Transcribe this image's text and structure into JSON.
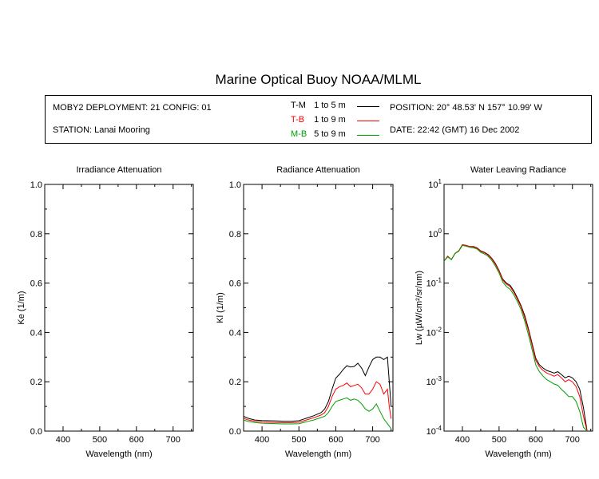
{
  "title": "Marine Optical Buoy NOAA/MLML",
  "info": {
    "deployment": "MOBY2 DEPLOYMENT: 21 CONFIG: 01",
    "station": "STATION: Lanai Mooring",
    "position": "POSITION: 20° 48.53' N   157° 10.99' W",
    "date": "DATE: 22:42 (GMT) 16 Dec 2002",
    "legend": [
      {
        "code": "T-M",
        "range": "1 to 5  m",
        "color": "#000000"
      },
      {
        "code": "T-B",
        "range": "1 to 9  m",
        "color": "#ff0000"
      },
      {
        "code": "M-B",
        "range": "5 to 9  m",
        "color": "#00a000"
      }
    ]
  },
  "chart_data": [
    {
      "type": "line",
      "title": "Irradiance Attenuation",
      "xlabel": "Wavelength (nm)",
      "ylabel": "Ke  (1/m)",
      "xlim": [
        350,
        755
      ],
      "ylim": [
        0,
        1.0
      ],
      "xticks": [
        "400",
        "500",
        "600",
        "700"
      ],
      "yticks": [
        "0.0",
        "0.2",
        "0.4",
        "0.6",
        "0.8",
        "1.0"
      ],
      "series": []
    },
    {
      "type": "line",
      "title": "Radiance Attenuation",
      "xlabel": "Wavelength (nm)",
      "ylabel": "Kl  (1/m)",
      "xlim": [
        350,
        755
      ],
      "ylim": [
        0,
        1.0
      ],
      "xticks": [
        "400",
        "500",
        "600",
        "700"
      ],
      "yticks": [
        "0.0",
        "0.2",
        "0.4",
        "0.6",
        "0.8",
        "1.0"
      ],
      "series": [
        {
          "color": "#000000",
          "x": [
            350,
            360,
            380,
            400,
            420,
            440,
            460,
            480,
            500,
            520,
            540,
            560,
            570,
            580,
            590,
            600,
            610,
            620,
            630,
            640,
            650,
            660,
            670,
            680,
            690,
            700,
            710,
            720,
            730,
            740,
            745,
            750
          ],
          "y": [
            0.06,
            0.053,
            0.045,
            0.043,
            0.042,
            0.041,
            0.04,
            0.04,
            0.042,
            0.052,
            0.062,
            0.075,
            0.09,
            0.12,
            0.17,
            0.215,
            0.23,
            0.25,
            0.265,
            0.26,
            0.262,
            0.275,
            0.255,
            0.225,
            0.26,
            0.29,
            0.3,
            0.3,
            0.29,
            0.3,
            0.2,
            0.1
          ]
        },
        {
          "color": "#ff0000",
          "x": [
            350,
            360,
            380,
            400,
            420,
            440,
            460,
            480,
            500,
            520,
            540,
            560,
            570,
            580,
            590,
            600,
            610,
            620,
            630,
            640,
            650,
            660,
            670,
            680,
            690,
            700,
            710,
            720,
            730,
            740,
            745,
            750
          ],
          "y": [
            0.052,
            0.046,
            0.04,
            0.037,
            0.036,
            0.035,
            0.034,
            0.034,
            0.036,
            0.045,
            0.054,
            0.065,
            0.075,
            0.1,
            0.14,
            0.17,
            0.18,
            0.185,
            0.195,
            0.18,
            0.185,
            0.19,
            0.175,
            0.15,
            0.15,
            0.17,
            0.2,
            0.19,
            0.15,
            0.17,
            0.1,
            0.05
          ]
        },
        {
          "color": "#00a000",
          "x": [
            350,
            360,
            380,
            400,
            420,
            440,
            460,
            480,
            500,
            520,
            540,
            560,
            570,
            580,
            590,
            600,
            610,
            620,
            630,
            640,
            650,
            660,
            670,
            680,
            690,
            700,
            710,
            720,
            730,
            740,
            745,
            750
          ],
          "y": [
            0.045,
            0.04,
            0.035,
            0.032,
            0.031,
            0.03,
            0.029,
            0.029,
            0.03,
            0.038,
            0.045,
            0.055,
            0.06,
            0.075,
            0.1,
            0.12,
            0.125,
            0.13,
            0.135,
            0.125,
            0.13,
            0.125,
            0.11,
            0.09,
            0.08,
            0.09,
            0.11,
            0.08,
            0.05,
            0.03,
            0.02,
            0.01
          ]
        }
      ]
    },
    {
      "type": "line",
      "title": "Water Leaving Radiance",
      "xlabel": "Wavelength (nm)",
      "ylabel": "Lw  (µW/cm²/sr/nm)",
      "yscale": "log",
      "xlim": [
        350,
        755
      ],
      "ylim": [
        0.0001,
        10
      ],
      "xticks": [
        "400",
        "500",
        "600",
        "700"
      ],
      "yticks": [
        "10^-4",
        "10^-3",
        "10^-2",
        "10^-1",
        "10^0",
        "10^1"
      ],
      "series": [
        {
          "color": "#000000",
          "x": [
            350,
            360,
            370,
            380,
            390,
            400,
            410,
            420,
            430,
            440,
            450,
            460,
            470,
            480,
            490,
            500,
            510,
            520,
            530,
            540,
            550,
            560,
            570,
            580,
            590,
            600,
            610,
            620,
            630,
            640,
            650,
            660,
            670,
            680,
            690,
            700,
            710,
            720,
            730,
            740
          ],
          "y": [
            0.28,
            0.35,
            0.3,
            0.4,
            0.45,
            0.6,
            0.58,
            0.55,
            0.55,
            0.52,
            0.45,
            0.42,
            0.38,
            0.32,
            0.25,
            0.18,
            0.12,
            0.1,
            0.09,
            0.07,
            0.05,
            0.035,
            0.022,
            0.012,
            0.006,
            0.003,
            0.0022,
            0.0019,
            0.0017,
            0.0016,
            0.0015,
            0.0016,
            0.0014,
            0.0012,
            0.0013,
            0.0012,
            0.001,
            0.0007,
            0.0003,
            0.0001
          ]
        },
        {
          "color": "#ff0000",
          "x": [
            350,
            360,
            370,
            380,
            390,
            400,
            410,
            420,
            430,
            440,
            450,
            460,
            470,
            480,
            490,
            500,
            510,
            520,
            530,
            540,
            550,
            560,
            570,
            580,
            590,
            600,
            610,
            620,
            630,
            640,
            650,
            660,
            670,
            680,
            690,
            700,
            710,
            720,
            730,
            740
          ],
          "y": [
            0.28,
            0.35,
            0.3,
            0.4,
            0.45,
            0.6,
            0.58,
            0.55,
            0.54,
            0.51,
            0.44,
            0.41,
            0.37,
            0.31,
            0.24,
            0.175,
            0.115,
            0.095,
            0.085,
            0.065,
            0.047,
            0.033,
            0.02,
            0.011,
            0.0055,
            0.0027,
            0.002,
            0.0017,
            0.0015,
            0.0014,
            0.0013,
            0.0014,
            0.0012,
            0.001,
            0.0011,
            0.001,
            0.0008,
            0.0005,
            0.0002,
            0.0001
          ]
        },
        {
          "color": "#00a000",
          "x": [
            350,
            360,
            370,
            380,
            390,
            400,
            410,
            420,
            430,
            440,
            450,
            460,
            470,
            480,
            490,
            500,
            510,
            520,
            530,
            540,
            550,
            560,
            570,
            580,
            590,
            600,
            610,
            620,
            630,
            640,
            650,
            660,
            670,
            680,
            690,
            700,
            710,
            720,
            730,
            740
          ],
          "y": [
            0.28,
            0.34,
            0.3,
            0.4,
            0.44,
            0.58,
            0.56,
            0.53,
            0.52,
            0.49,
            0.42,
            0.39,
            0.35,
            0.29,
            0.22,
            0.16,
            0.105,
            0.085,
            0.075,
            0.058,
            0.042,
            0.029,
            0.017,
            0.009,
            0.0045,
            0.0022,
            0.0016,
            0.0013,
            0.0011,
            0.001,
            0.0009,
            0.00085,
            0.0007,
            0.0006,
            0.0005,
            0.0005,
            0.0004,
            0.00025,
            0.00012,
            0.0001
          ]
        }
      ]
    }
  ]
}
